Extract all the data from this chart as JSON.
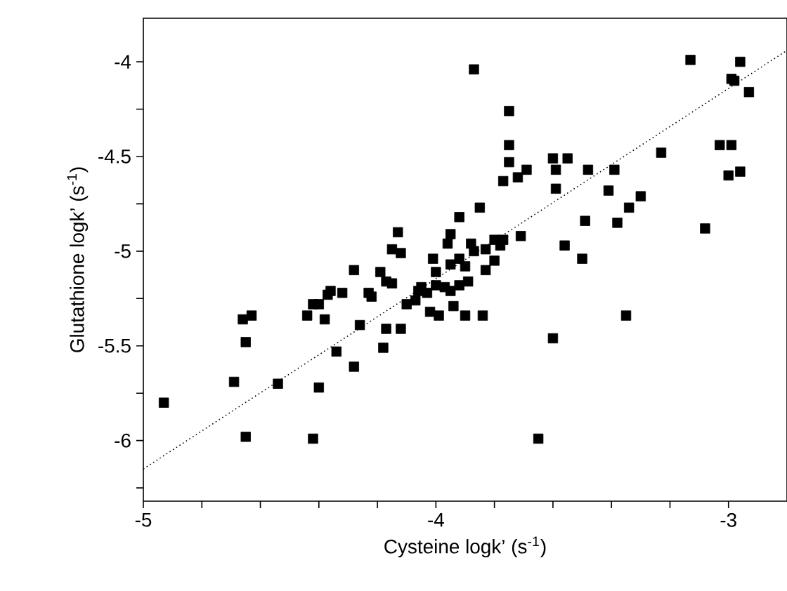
{
  "chart_data": {
    "type": "scatter",
    "xlabel": "Cysteine logk’ (s$^{-1}$)",
    "ylabel": "Glutathione logk’ (s$^{-1}$)",
    "xlim": [
      -5,
      -2.8
    ],
    "ylim": [
      -6.32,
      -3.77
    ],
    "xticks": [
      -5,
      {
        "value": -4.8,
        "label": null
      },
      {
        "value": -4.6,
        "label": null
      },
      {
        "value": -4.4,
        "label": null
      },
      {
        "value": -4.2,
        "label": null
      },
      -4,
      {
        "value": -3.8,
        "label": null
      },
      {
        "value": -3.6,
        "label": null
      },
      {
        "value": -3.4,
        "label": null
      },
      {
        "value": -3.2,
        "label": null
      },
      -3
    ],
    "yticks": [
      {
        "value": -6.25,
        "label": null
      },
      -6,
      {
        "value": -5.75,
        "label": null
      },
      -5.5,
      {
        "value": -5.25,
        "label": null
      },
      -5,
      {
        "value": -4.75,
        "label": null
      },
      -4.5,
      {
        "value": -4.25,
        "label": null
      },
      -4
    ],
    "series": [
      {
        "marker": "square",
        "color": "#000000",
        "x": [
          -4.93,
          -4.69,
          -4.65,
          -4.65,
          -4.66,
          -4.63,
          -4.54,
          -4.44,
          -4.42,
          -4.42,
          -4.4,
          -4.4,
          -4.38,
          -4.37,
          -4.36,
          -4.34,
          -4.32,
          -4.28,
          -4.28,
          -4.26,
          -4.23,
          -4.22,
          -4.19,
          -4.18,
          -4.17,
          -4.15,
          -4.17,
          -4.12,
          -4.15,
          -4.13,
          -4.12,
          -4.1,
          -4.07,
          -4.06,
          -4.05,
          -4.03,
          -4.01,
          -4.02,
          -3.99,
          -4.0,
          -4.0,
          -3.97,
          -3.95,
          -3.92,
          -3.96,
          -3.95,
          -3.95,
          -3.94,
          -3.92,
          -3.92,
          -3.9,
          -3.9,
          -3.89,
          -3.88,
          -3.87,
          -3.87,
          -3.85,
          -3.84,
          -3.83,
          -3.83,
          -3.8,
          -3.8,
          -3.78,
          -3.77,
          -3.77,
          -3.75,
          -3.75,
          -3.75,
          -3.72,
          -3.69,
          -3.71,
          -3.65,
          -3.6,
          -3.6,
          -3.59,
          -3.59,
          -3.56,
          -3.55,
          -3.5,
          -3.49,
          -3.48,
          -3.41,
          -3.39,
          -3.38,
          -3.35,
          -3.34,
          -3.3,
          -3.23,
          -3.13,
          -3.08,
          -3.03,
          -2.99,
          -3.0,
          -2.96,
          -2.99,
          -2.98,
          -2.96,
          -2.93
        ],
        "values": [
          -5.8,
          -5.69,
          -5.98,
          -5.48,
          -5.36,
          -5.34,
          -5.7,
          -5.34,
          -5.99,
          -5.28,
          -5.28,
          -5.72,
          -5.36,
          -5.23,
          -5.21,
          -5.53,
          -5.22,
          -5.61,
          -5.1,
          -5.39,
          -5.22,
          -5.24,
          -5.11,
          -5.51,
          -5.16,
          -5.17,
          -5.41,
          -5.41,
          -4.99,
          -4.9,
          -5.01,
          -5.28,
          -5.26,
          -5.21,
          -5.19,
          -5.22,
          -5.04,
          -5.32,
          -5.34,
          -5.11,
          -5.18,
          -5.19,
          -5.21,
          -5.18,
          -4.96,
          -4.91,
          -5.07,
          -5.29,
          -5.04,
          -4.82,
          -5.08,
          -5.34,
          -5.16,
          -4.96,
          -5.0,
          -4.04,
          -4.77,
          -5.34,
          -5.1,
          -4.99,
          -5.05,
          -4.94,
          -4.97,
          -4.94,
          -4.63,
          -4.26,
          -4.44,
          -4.53,
          -4.61,
          -4.57,
          -4.92,
          -5.99,
          -4.51,
          -5.46,
          -4.57,
          -4.67,
          -4.97,
          -4.51,
          -5.04,
          -4.84,
          -4.57,
          -4.68,
          -4.57,
          -4.85,
          -5.34,
          -4.77,
          -4.71,
          -4.48,
          -3.99,
          -4.88,
          -4.44,
          -4.44,
          -4.6,
          -4.58,
          -4.09,
          -4.1,
          -4.0,
          -4.16
        ]
      },
      {
        "type": "line",
        "marker": "none",
        "color": "#000000",
        "line_style": "dotted",
        "x": [
          -5,
          -2.8
        ],
        "values": [
          -6.15,
          -3.94
        ]
      }
    ]
  }
}
